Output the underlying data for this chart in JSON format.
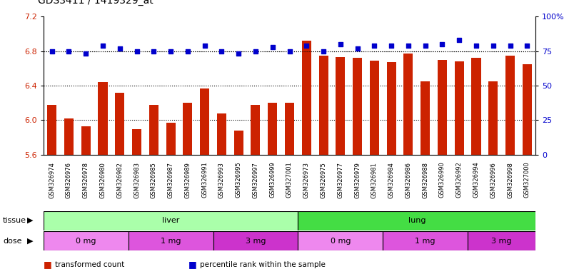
{
  "title": "GDS3411 / 1419329_at",
  "samples": [
    "GSM326974",
    "GSM326976",
    "GSM326978",
    "GSM326980",
    "GSM326982",
    "GSM326983",
    "GSM326985",
    "GSM326987",
    "GSM326989",
    "GSM326991",
    "GSM326993",
    "GSM326995",
    "GSM326997",
    "GSM326999",
    "GSM327001",
    "GSM326973",
    "GSM326975",
    "GSM326977",
    "GSM326979",
    "GSM326981",
    "GSM326984",
    "GSM326986",
    "GSM326988",
    "GSM326990",
    "GSM326992",
    "GSM326994",
    "GSM326996",
    "GSM326998",
    "GSM327000"
  ],
  "bar_values": [
    6.18,
    6.02,
    5.93,
    6.44,
    6.32,
    5.9,
    6.18,
    5.97,
    6.2,
    6.37,
    6.08,
    5.88,
    6.18,
    6.2,
    6.2,
    6.92,
    6.75,
    6.73,
    6.72,
    6.69,
    6.67,
    6.77,
    6.45,
    6.7,
    6.68,
    6.72,
    6.45,
    6.75,
    6.65
  ],
  "percentile_values": [
    75,
    75,
    73,
    79,
    77,
    75,
    75,
    75,
    75,
    79,
    75,
    73,
    75,
    78,
    75,
    79,
    75,
    80,
    77,
    79,
    79,
    79,
    79,
    80,
    83,
    79,
    79,
    79,
    79
  ],
  "ylim_left": [
    5.6,
    7.2
  ],
  "ylim_right": [
    0,
    100
  ],
  "yticks_left": [
    5.6,
    6.0,
    6.4,
    6.8,
    7.2
  ],
  "yticks_right": [
    0,
    25,
    50,
    75,
    100
  ],
  "bar_color": "#cc2200",
  "dot_color": "#0000cc",
  "grid_values": [
    6.0,
    6.4,
    6.8
  ],
  "tissue_groups": [
    {
      "label": "liver",
      "start": 0,
      "end": 14,
      "color": "#aaffaa"
    },
    {
      "label": "lung",
      "start": 15,
      "end": 28,
      "color": "#44dd44"
    }
  ],
  "dose_groups": [
    {
      "label": "0 mg",
      "start": 0,
      "end": 4,
      "color": "#ee88ee"
    },
    {
      "label": "1 mg",
      "start": 5,
      "end": 9,
      "color": "#dd55dd"
    },
    {
      "label": "3 mg",
      "start": 10,
      "end": 14,
      "color": "#cc33cc"
    },
    {
      "label": "0 mg",
      "start": 15,
      "end": 19,
      "color": "#ee88ee"
    },
    {
      "label": "1 mg",
      "start": 20,
      "end": 24,
      "color": "#dd55dd"
    },
    {
      "label": "3 mg",
      "start": 25,
      "end": 28,
      "color": "#cc33cc"
    }
  ],
  "legend_items": [
    {
      "label": "transformed count",
      "color": "#cc2200"
    },
    {
      "label": "percentile rank within the sample",
      "color": "#0000cc"
    }
  ],
  "background_color": "#ffffff",
  "xticklabel_fontsize": 6.0,
  "title_fontsize": 10
}
